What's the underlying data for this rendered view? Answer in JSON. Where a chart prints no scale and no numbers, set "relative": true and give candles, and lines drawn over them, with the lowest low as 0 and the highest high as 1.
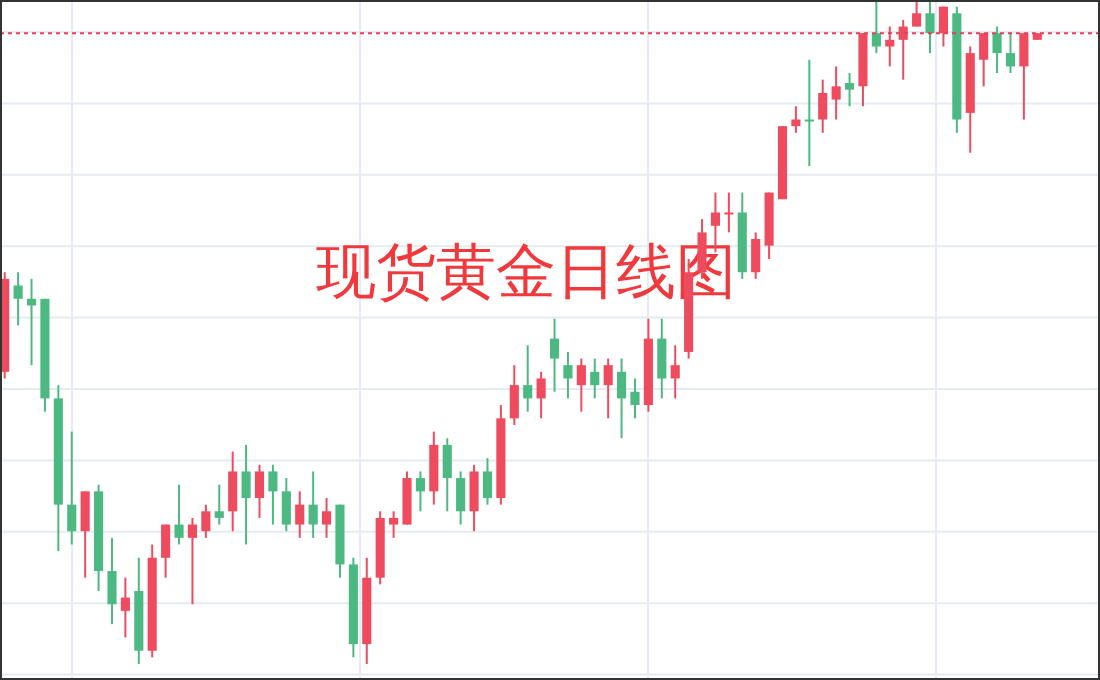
{
  "chart_data": {
    "type": "candlestick",
    "title": "现货黄金日线图",
    "relative": true,
    "grid": true,
    "categories": [
      null,
      null,
      null,
      null,
      null,
      null,
      null,
      null,
      null,
      null,
      null,
      null,
      null,
      null,
      null,
      null,
      null,
      null,
      null,
      null,
      null,
      null,
      null,
      null,
      null,
      null,
      null,
      null,
      null,
      null,
      null,
      null,
      null,
      null,
      null,
      null,
      null,
      null,
      null,
      null,
      null,
      null,
      null,
      null,
      null,
      null,
      null,
      null,
      null,
      null,
      null,
      null,
      null,
      null,
      null,
      null,
      null,
      null,
      null,
      null,
      null,
      null,
      null,
      null,
      null,
      null,
      null,
      null,
      null,
      null,
      null,
      null,
      null,
      null,
      null,
      null,
      null,
      null
    ],
    "ohlc": [
      [
        0.44,
        0.59,
        0.43,
        0.58
      ],
      [
        0.57,
        0.59,
        0.51,
        0.55
      ],
      [
        0.55,
        0.58,
        0.45,
        0.54
      ],
      [
        0.55,
        0.55,
        0.38,
        0.4
      ],
      [
        0.4,
        0.42,
        0.17,
        0.24
      ],
      [
        0.24,
        0.35,
        0.18,
        0.2
      ],
      [
        0.2,
        0.26,
        0.13,
        0.26
      ],
      [
        0.26,
        0.27,
        0.11,
        0.14
      ],
      [
        0.14,
        0.19,
        0.06,
        0.09
      ],
      [
        0.08,
        0.13,
        0.04,
        0.1
      ],
      [
        0.11,
        0.16,
        0,
        0.02
      ],
      [
        0.02,
        0.18,
        0.01,
        0.16
      ],
      [
        0.16,
        0.21,
        0.13,
        0.21
      ],
      [
        0.21,
        0.27,
        0.18,
        0.19
      ],
      [
        0.19,
        0.22,
        0.09,
        0.21
      ],
      [
        0.2,
        0.24,
        0.19,
        0.23
      ],
      [
        0.23,
        0.27,
        0.21,
        0.22
      ],
      [
        0.23,
        0.32,
        0.2,
        0.29
      ],
      [
        0.29,
        0.33,
        0.18,
        0.25
      ],
      [
        0.25,
        0.3,
        0.22,
        0.29
      ],
      [
        0.29,
        0.3,
        0.21,
        0.26
      ],
      [
        0.26,
        0.28,
        0.2,
        0.21
      ],
      [
        0.21,
        0.26,
        0.19,
        0.24
      ],
      [
        0.24,
        0.29,
        0.19,
        0.21
      ],
      [
        0.21,
        0.25,
        0.19,
        0.23
      ],
      [
        0.24,
        0.24,
        0.13,
        0.15
      ],
      [
        0.15,
        0.16,
        0.01,
        0.03
      ],
      [
        0.03,
        0.16,
        0,
        0.13
      ],
      [
        0.13,
        0.23,
        0.12,
        0.22
      ],
      [
        0.21,
        0.23,
        0.19,
        0.22
      ],
      [
        0.21,
        0.29,
        0.21,
        0.28
      ],
      [
        0.28,
        0.29,
        0.23,
        0.26
      ],
      [
        0.26,
        0.35,
        0.24,
        0.33
      ],
      [
        0.33,
        0.34,
        0.23,
        0.28
      ],
      [
        0.28,
        0.29,
        0.21,
        0.23
      ],
      [
        0.23,
        0.3,
        0.2,
        0.29
      ],
      [
        0.29,
        0.31,
        0.24,
        0.25
      ],
      [
        0.25,
        0.39,
        0.24,
        0.37
      ],
      [
        0.37,
        0.45,
        0.36,
        0.42
      ],
      [
        0.42,
        0.48,
        0.38,
        0.4
      ],
      [
        0.4,
        0.44,
        0.37,
        0.43
      ],
      [
        0.49,
        0.52,
        0.41,
        0.46
      ],
      [
        0.45,
        0.47,
        0.4,
        0.43
      ],
      [
        0.42,
        0.46,
        0.38,
        0.45
      ],
      [
        0.44,
        0.46,
        0.4,
        0.42
      ],
      [
        0.42,
        0.46,
        0.37,
        0.45
      ],
      [
        0.44,
        0.46,
        0.34,
        0.4
      ],
      [
        0.41,
        0.43,
        0.37,
        0.39
      ],
      [
        0.39,
        0.52,
        0.38,
        0.49
      ],
      [
        0.49,
        0.52,
        0.4,
        0.43
      ],
      [
        0.43,
        0.48,
        0.4,
        0.45
      ],
      [
        0.47,
        0.61,
        0.46,
        0.59
      ],
      [
        0.59,
        0.67,
        0.58,
        0.65
      ],
      [
        0.66,
        0.71,
        0.62,
        0.68
      ],
      [
        0.68,
        0.71,
        0.65,
        0.68
      ],
      [
        0.68,
        0.71,
        0.58,
        0.59
      ],
      [
        0.59,
        0.65,
        0.58,
        0.64
      ],
      [
        0.63,
        0.71,
        0.61,
        0.71
      ],
      [
        0.7,
        0.81,
        0.7,
        0.81
      ],
      [
        0.81,
        0.84,
        0.8,
        0.82
      ],
      [
        0.82,
        0.91,
        0.75,
        0.82
      ],
      [
        0.82,
        0.88,
        0.8,
        0.86
      ],
      [
        0.85,
        0.9,
        0.82,
        0.87
      ],
      [
        0.875,
        0.89,
        0.84,
        0.865
      ],
      [
        0.87,
        0.95,
        0.84,
        0.95
      ],
      [
        0.95,
        1,
        0.92,
        0.93
      ],
      [
        0.93,
        0.96,
        0.9,
        0.94
      ],
      [
        0.94,
        0.97,
        0.88,
        0.96
      ],
      [
        0.96,
        1,
        0.96,
        0.98
      ],
      [
        0.98,
        1,
        0.92,
        0.95
      ],
      [
        0.95,
        0.99,
        0.93,
        0.99
      ],
      [
        0.98,
        0.99,
        0.8,
        0.82
      ],
      [
        0.83,
        0.93,
        0.77,
        0.92
      ],
      [
        0.91,
        0.95,
        0.87,
        0.95
      ],
      [
        0.95,
        0.96,
        0.89,
        0.92
      ],
      [
        0.92,
        0.95,
        0.89,
        0.9
      ],
      [
        0.9,
        0.95,
        0.82,
        0.95
      ],
      [
        0.94,
        0.95,
        0.94,
        0.95
      ]
    ],
    "colors": [
      "#ef4b5e",
      "#4cb882",
      "#4cb882",
      "#4cb882",
      "#4cb882",
      "#4cb882",
      "#ef4b5e",
      "#4cb882",
      "#4cb882",
      "#ef4b5e",
      "#4cb882",
      "#ef4b5e",
      "#ef4b5e",
      "#4cb882",
      "#ef4b5e",
      "#ef4b5e",
      "#4cb882",
      "#ef4b5e",
      "#4cb882",
      "#ef4b5e",
      "#4cb882",
      "#4cb882",
      "#ef4b5e",
      "#4cb882",
      "#ef4b5e",
      "#4cb882",
      "#4cb882",
      "#ef4b5e",
      "#ef4b5e",
      "#ef4b5e",
      "#ef4b5e",
      "#4cb882",
      "#ef4b5e",
      "#4cb882",
      "#4cb882",
      "#ef4b5e",
      "#4cb882",
      "#ef4b5e",
      "#ef4b5e",
      "#4cb882",
      "#ef4b5e",
      "#4cb882",
      "#4cb882",
      "#ef4b5e",
      "#4cb882",
      "#ef4b5e",
      "#4cb882",
      "#4cb882",
      "#ef4b5e",
      "#4cb882",
      "#ef4b5e",
      "#ef4b5e",
      "#ef4b5e",
      "#ef4b5e",
      "#ef4b5e",
      "#4cb882",
      "#ef4b5e",
      "#ef4b5e",
      "#ef4b5e",
      "#ef4b5e",
      "#4cb882",
      "#ef4b5e",
      "#ef4b5e",
      "#4cb882",
      "#ef4b5e",
      "#4cb882",
      "#ef4b5e",
      "#ef4b5e",
      "#ef4b5e",
      "#4cb882",
      "#ef4b5e",
      "#4cb882",
      "#ef4b5e",
      "#ef4b5e",
      "#4cb882",
      "#4cb882",
      "#ef4b5e",
      "#ef4b5e"
    ],
    "ref_lines": [
      {
        "axis": "y",
        "value": 0.95,
        "color": "#e0405a",
        "line_style": "dotted"
      }
    ]
  }
}
